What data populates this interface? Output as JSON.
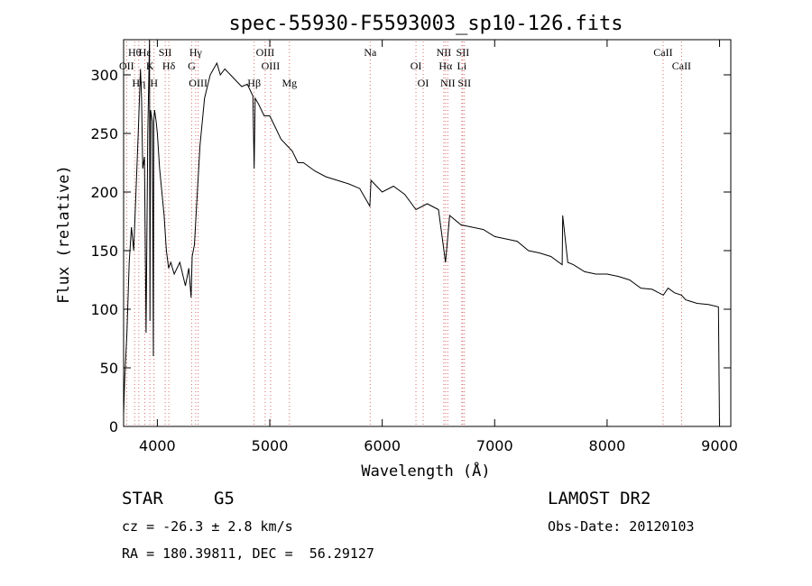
{
  "chart_data": {
    "type": "line",
    "title": "spec-55930-F5593003_sp10-126.fits",
    "xlabel": "Wavelength (Å)",
    "ylabel": "Flux (relative)",
    "xlim": [
      3700,
      9100
    ],
    "ylim": [
      0,
      330
    ],
    "x_ticks": [
      4000,
      5000,
      6000,
      7000,
      8000,
      9000
    ],
    "y_ticks": [
      0,
      50,
      100,
      150,
      200,
      250,
      300
    ],
    "grid": false,
    "series": [
      {
        "x": [
          3700,
          3710,
          3730,
          3750,
          3770,
          3790,
          3810,
          3830,
          3850,
          3860,
          3870,
          3885,
          3900,
          3915,
          3930,
          3934,
          3940,
          3955,
          3965,
          3968,
          3975,
          3990,
          4000,
          4020,
          4040,
          4060,
          4080,
          4100,
          4120,
          4150,
          4200,
          4250,
          4280,
          4300,
          4310,
          4330,
          4350,
          4380,
          4420,
          4470,
          4500,
          4530,
          4560,
          4600,
          4650,
          4700,
          4750,
          4800,
          4850,
          4861,
          4870,
          4900,
          4950,
          5000,
          5050,
          5100,
          5150,
          5200,
          5250,
          5300,
          5400,
          5500,
          5600,
          5700,
          5800,
          5890,
          5900,
          6000,
          6100,
          6200,
          6300,
          6400,
          6500,
          6563,
          6600,
          6700,
          6800,
          6900,
          7000,
          7100,
          7200,
          7300,
          7400,
          7500,
          7600,
          7605,
          7650,
          7700,
          7800,
          7900,
          8000,
          8100,
          8200,
          8300,
          8400,
          8500,
          8542,
          8600,
          8662,
          8700,
          8800,
          8900,
          8990,
          9000
        ],
        "y": [
          10,
          40,
          80,
          140,
          170,
          150,
          200,
          250,
          305,
          280,
          220,
          230,
          80,
          250,
          330,
          90,
          270,
          260,
          60,
          260,
          270,
          260,
          250,
          220,
          200,
          180,
          150,
          135,
          140,
          130,
          140,
          120,
          135,
          110,
          145,
          155,
          190,
          240,
          280,
          300,
          305,
          310,
          300,
          305,
          300,
          295,
          290,
          292,
          282,
          220,
          280,
          275,
          265,
          265,
          255,
          245,
          240,
          235,
          225,
          225,
          218,
          213,
          210,
          207,
          203,
          188,
          210,
          200,
          205,
          198,
          185,
          190,
          185,
          140,
          180,
          172,
          170,
          168,
          162,
          160,
          158,
          150,
          148,
          145,
          138,
          180,
          140,
          138,
          132,
          130,
          130,
          128,
          125,
          118,
          117,
          112,
          118,
          114,
          112,
          108,
          105,
          104,
          102,
          0
        ]
      }
    ],
    "line_markers": [
      {
        "name": "Hθ",
        "x": 3798
      },
      {
        "name": "OII",
        "x": 3727
      },
      {
        "name": "Hη",
        "x": 3835
      },
      {
        "name": "Hε",
        "x": 3889
      },
      {
        "name": "K",
        "x": 3934
      },
      {
        "name": "H",
        "x": 3970
      },
      {
        "name": "SII",
        "x": 4070
      },
      {
        "name": "Hδ",
        "x": 4102
      },
      {
        "name": "OIII",
        "x": 4363
      },
      {
        "name": "Hγ",
        "x": 4341
      },
      {
        "name": "G",
        "x": 4305
      },
      {
        "name": "Hβ",
        "x": 4861
      },
      {
        "name": "OIII",
        "x": 4959
      },
      {
        "name": "OIII",
        "x": 5007
      },
      {
        "name": "Mg",
        "x": 5175
      },
      {
        "name": "Na",
        "x": 5893
      },
      {
        "name": "OI",
        "x": 6300
      },
      {
        "name": "OI",
        "x": 6364
      },
      {
        "name": "NII",
        "x": 6548
      },
      {
        "name": "Hα",
        "x": 6563
      },
      {
        "name": "NII",
        "x": 6583
      },
      {
        "name": "SII",
        "x": 6716
      },
      {
        "name": "Li",
        "x": 6708
      },
      {
        "name": "SII",
        "x": 6731
      },
      {
        "name": "CaII",
        "x": 8498
      },
      {
        "name": "CaII",
        "x": 8662
      }
    ]
  },
  "info": {
    "object_class": "STAR",
    "subclass": "G5",
    "survey": "LAMOST DR2",
    "redshift": "cz = -26.3 ± 2.8 km/s",
    "obs_date": "Obs-Date: 20120103",
    "coords": "RA = 180.39811, DEC =  56.29127"
  },
  "colors": {
    "spectrum": "#000000",
    "marker_line": "#d86a6a",
    "axes": "#000000"
  }
}
